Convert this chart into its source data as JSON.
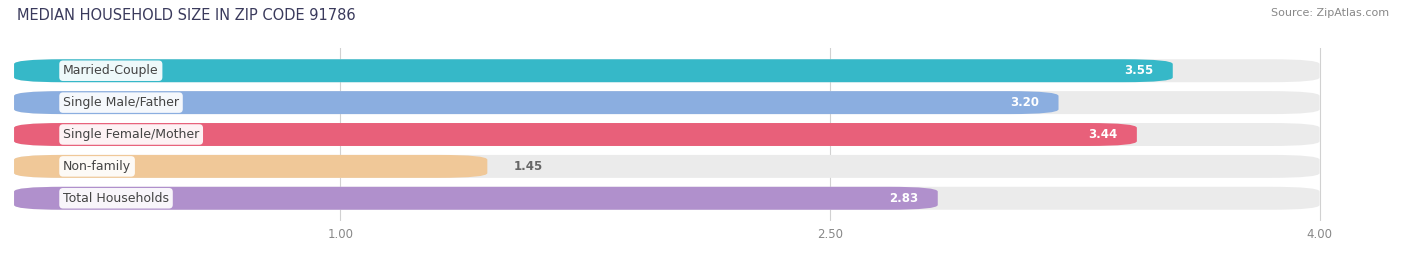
{
  "title": "MEDIAN HOUSEHOLD SIZE IN ZIP CODE 91786",
  "source": "Source: ZipAtlas.com",
  "categories": [
    "Married-Couple",
    "Single Male/Father",
    "Single Female/Mother",
    "Non-family",
    "Total Households"
  ],
  "values": [
    3.55,
    3.2,
    3.44,
    1.45,
    2.83
  ],
  "bar_colors": [
    "#36b8c8",
    "#8baee0",
    "#e8607a",
    "#f0c898",
    "#b090cc"
  ],
  "xlim": [
    0,
    4.2
  ],
  "xmin": 0,
  "xmax": 4.0,
  "xticks": [
    1.0,
    2.5,
    4.0
  ],
  "xtick_labels": [
    "1.00",
    "2.50",
    "4.00"
  ],
  "title_fontsize": 10.5,
  "source_fontsize": 8,
  "label_fontsize": 9,
  "value_fontsize": 8.5,
  "background_color": "#ffffff",
  "bar_bg_color": "#ebebeb"
}
